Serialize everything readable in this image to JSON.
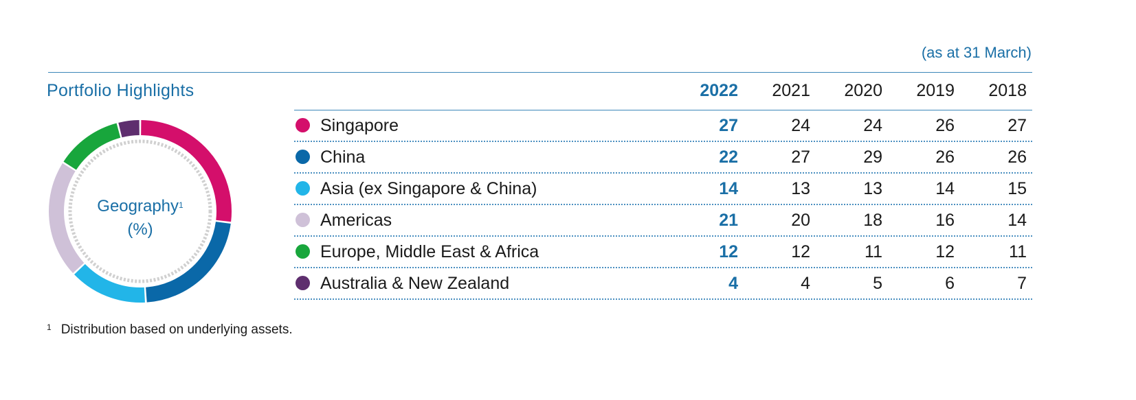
{
  "header": {
    "as_at": "(as at 31 March)",
    "section_title": "Portfolio Highlights"
  },
  "donut": {
    "label_line1": "Geography",
    "footnote_marker": "1",
    "label_line2": "(%)"
  },
  "table": {
    "years": [
      "2022",
      "2021",
      "2020",
      "2019",
      "2018"
    ],
    "rows": [
      {
        "name": "Singapore",
        "color": "#d40f6b",
        "values": [
          "27",
          "24",
          "24",
          "26",
          "27"
        ]
      },
      {
        "name": "China",
        "color": "#0a68a8",
        "values": [
          "22",
          "27",
          "29",
          "26",
          "26"
        ]
      },
      {
        "name": "Asia (ex Singapore & China)",
        "color": "#22b5e8",
        "values": [
          "14",
          "13",
          "13",
          "14",
          "15"
        ]
      },
      {
        "name": "Americas",
        "color": "#cfc1d8",
        "values": [
          "21",
          "20",
          "18",
          "16",
          "14"
        ]
      },
      {
        "name": "Europe, Middle East & Africa",
        "color": "#18a63c",
        "values": [
          "12",
          "12",
          "11",
          "12",
          "11"
        ]
      },
      {
        "name": "Australia & New Zealand",
        "color": "#5e2e6e",
        "values": [
          "4",
          "4",
          "5",
          "6",
          "7"
        ]
      }
    ]
  },
  "chart_data": {
    "type": "pie",
    "categories": [
      "Singapore",
      "China",
      "Asia (ex Singapore & China)",
      "Americas",
      "Europe, Middle East & Africa",
      "Australia & New Zealand"
    ],
    "values": [
      27,
      22,
      14,
      21,
      12,
      4
    ],
    "colors": [
      "#d40f6b",
      "#0a68a8",
      "#22b5e8",
      "#cfc1d8",
      "#18a63c",
      "#5e2e6e"
    ],
    "title": "Geography",
    "unit": "%",
    "year": "2022"
  },
  "footnote": {
    "marker": "1",
    "text": "Distribution based on underlying assets."
  }
}
